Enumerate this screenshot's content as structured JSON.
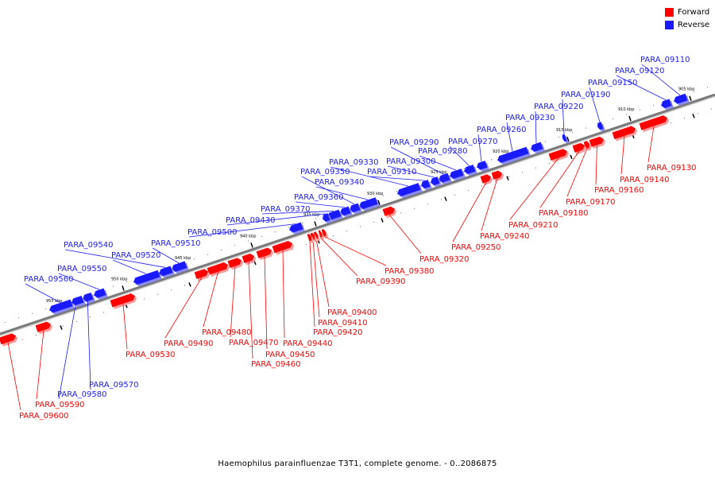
{
  "legend": {
    "forward": {
      "label": "Forward",
      "color": "#ff0000"
    },
    "reverse": {
      "label": "Reverse",
      "color": "#1a1aff"
    }
  },
  "caption": "Haemophilus parainfluenzae T3T1, complete genome. - 0..2086875",
  "colors": {
    "forward": "#ff0000",
    "reverse": "#1a1aff",
    "axis": "#7a7a7a"
  },
  "kbp_labels": [
    "905 kbp",
    "910 kbp",
    "915 kbp",
    "920 kbp",
    "925 kbp",
    "930 kbp",
    "935 kbp",
    "940 kbp",
    "945 kbp",
    "950 kbp",
    "955 kbp"
  ],
  "genes": [
    {
      "id": "PARA_09110",
      "strand": "reverse"
    },
    {
      "id": "PARA_09120",
      "strand": "reverse"
    },
    {
      "id": "PARA_09130",
      "strand": "forward"
    },
    {
      "id": "PARA_09140",
      "strand": "forward"
    },
    {
      "id": "PARA_09150",
      "strand": "reverse"
    },
    {
      "id": "PARA_09160",
      "strand": "forward"
    },
    {
      "id": "PARA_09170",
      "strand": "forward"
    },
    {
      "id": "PARA_09180",
      "strand": "forward"
    },
    {
      "id": "PARA_09190",
      "strand": "reverse"
    },
    {
      "id": "PARA_09210",
      "strand": "forward"
    },
    {
      "id": "PARA_09220",
      "strand": "reverse"
    },
    {
      "id": "PARA_09230",
      "strand": "reverse"
    },
    {
      "id": "PARA_09240",
      "strand": "forward"
    },
    {
      "id": "PARA_09250",
      "strand": "forward"
    },
    {
      "id": "PARA_09260",
      "strand": "reverse"
    },
    {
      "id": "PARA_09270",
      "strand": "reverse"
    },
    {
      "id": "PARA_09280",
      "strand": "reverse"
    },
    {
      "id": "PARA_09290",
      "strand": "reverse"
    },
    {
      "id": "PARA_09300",
      "strand": "reverse"
    },
    {
      "id": "PARA_09310",
      "strand": "reverse"
    },
    {
      "id": "PARA_09320",
      "strand": "forward"
    },
    {
      "id": "PARA_09330",
      "strand": "reverse"
    },
    {
      "id": "PARA_09340",
      "strand": "reverse"
    },
    {
      "id": "PARA_09350",
      "strand": "reverse"
    },
    {
      "id": "PARA_09360",
      "strand": "reverse"
    },
    {
      "id": "PARA_09370",
      "strand": "reverse"
    },
    {
      "id": "PARA_09380",
      "strand": "forward"
    },
    {
      "id": "PARA_09390",
      "strand": "forward"
    },
    {
      "id": "PARA_09400",
      "strand": "forward"
    },
    {
      "id": "PARA_09410",
      "strand": "forward"
    },
    {
      "id": "PARA_09420",
      "strand": "forward"
    },
    {
      "id": "PARA_09430",
      "strand": "reverse"
    },
    {
      "id": "PARA_09440",
      "strand": "forward"
    },
    {
      "id": "PARA_09450",
      "strand": "forward"
    },
    {
      "id": "PARA_09460",
      "strand": "forward"
    },
    {
      "id": "PARA_09470",
      "strand": "forward"
    },
    {
      "id": "PARA_09480",
      "strand": "forward"
    },
    {
      "id": "PARA_09490",
      "strand": "forward"
    },
    {
      "id": "PARA_09500",
      "strand": "reverse"
    },
    {
      "id": "PARA_09510",
      "strand": "reverse"
    },
    {
      "id": "PARA_09520",
      "strand": "reverse"
    },
    {
      "id": "PARA_09530",
      "strand": "forward"
    },
    {
      "id": "PARA_09540",
      "strand": "reverse"
    },
    {
      "id": "PARA_09550",
      "strand": "reverse"
    },
    {
      "id": "PARA_09560",
      "strand": "reverse"
    },
    {
      "id": "PARA_09570",
      "strand": "reverse"
    },
    {
      "id": "PARA_09580",
      "strand": "reverse"
    },
    {
      "id": "PARA_09590",
      "strand": "forward"
    },
    {
      "id": "PARA_09600",
      "strand": "forward"
    }
  ]
}
